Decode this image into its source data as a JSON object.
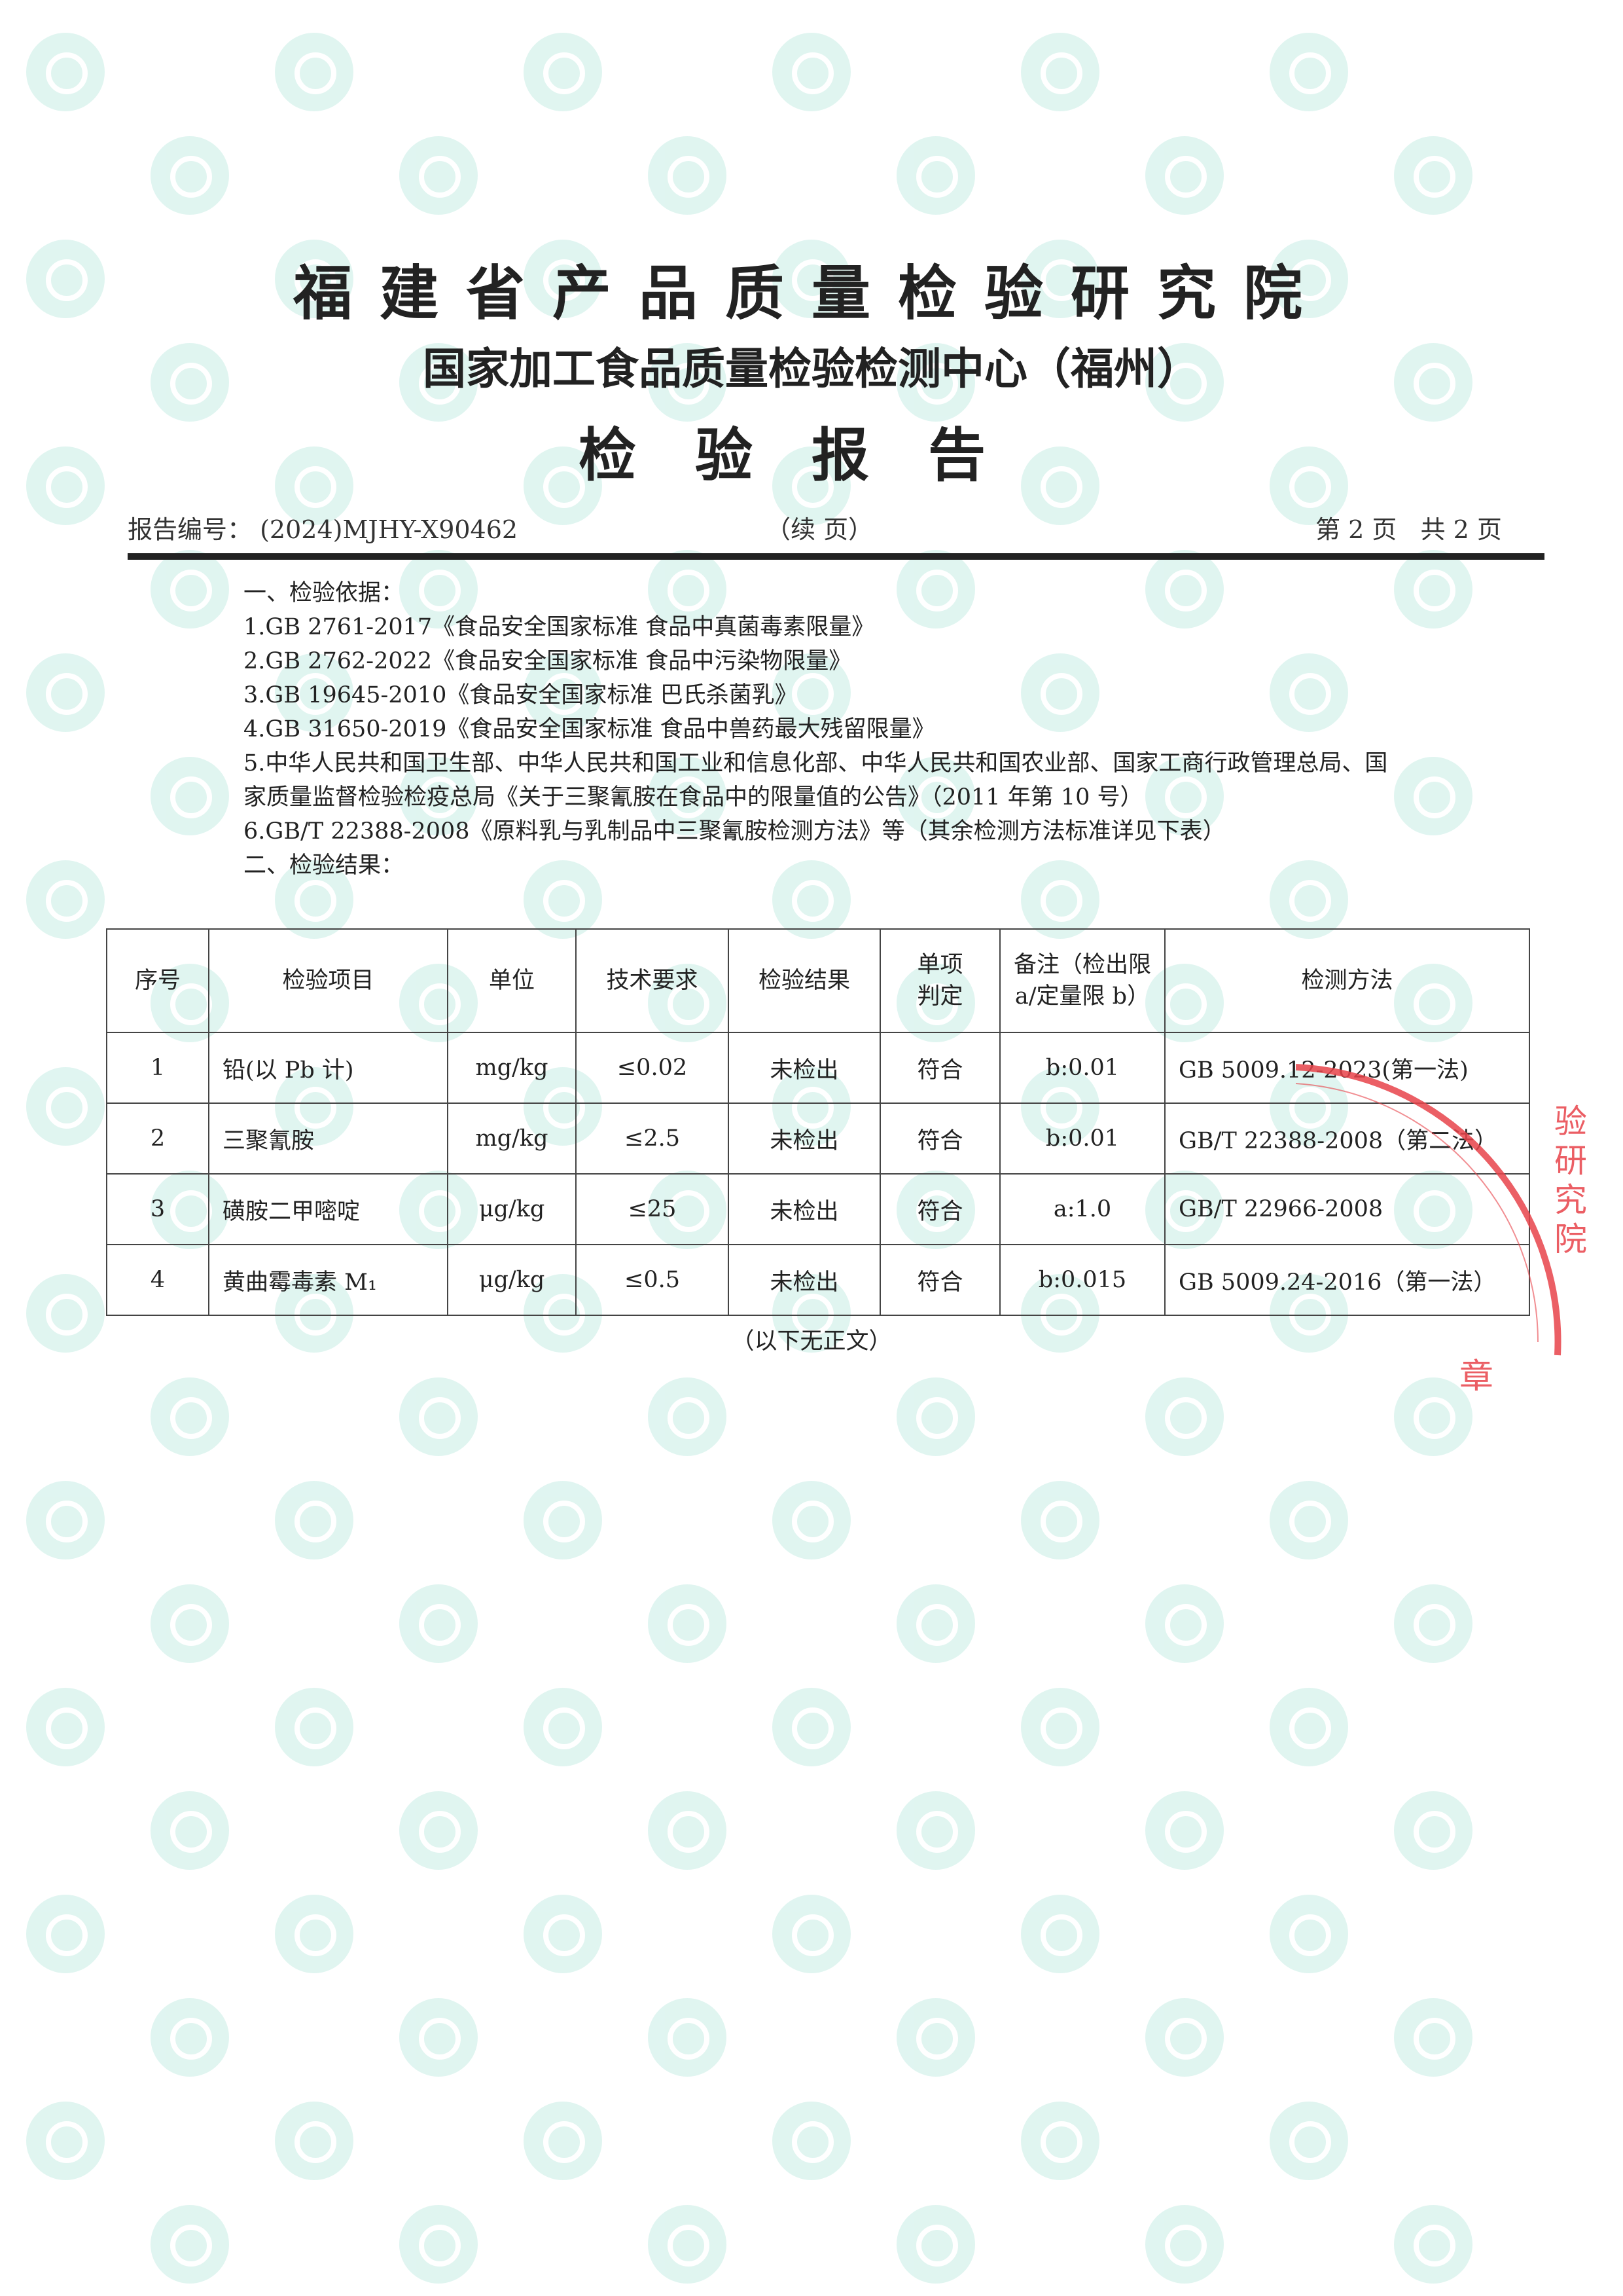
{
  "header": {
    "org_title": "福建省产品质量检验研究院",
    "org_subtitle": "国家加工食品质量检验检测中心（福州）",
    "doc_title": "检验报告",
    "report_no_label": "报告编号：",
    "report_no": "(2024)MJHY-X90462",
    "continued": "（续 页）",
    "page_info": "第 2 页   共 2 页"
  },
  "basis": {
    "heading": "一、检验依据：",
    "items": [
      "1.GB 2761-2017《食品安全国家标准  食品中真菌毒素限量》",
      "2.GB 2762-2022《食品安全国家标准  食品中污染物限量》",
      "3.GB 19645-2010《食品安全国家标准  巴氏杀菌乳》",
      "4.GB 31650-2019《食品安全国家标准  食品中兽药最大残留限量》",
      "5.中华人民共和国卫生部、中华人民共和国工业和信息化部、中华人民共和国农业部、国家工商行政管理总局、国家质量监督检验检疫总局《关于三聚氰胺在食品中的限量值的公告》（2011 年第 10 号）",
      "6.GB/T 22388-2008《原料乳与乳制品中三聚氰胺检测方法》等（其余检测方法标准详见下表）"
    ]
  },
  "results": {
    "heading": "二、检验结果：",
    "columns": [
      "序号",
      "检验项目",
      "单位",
      "技术要求",
      "检验结果",
      "单项判定",
      "备注（检出限 a/定量限 b）",
      "检测方法"
    ],
    "rows": [
      [
        "1",
        "铅(以 Pb 计)",
        "mg/kg",
        "≤0.02",
        "未检出",
        "符合",
        "b:0.01",
        "GB 5009.12-2023(第一法)"
      ],
      [
        "2",
        "三聚氰胺",
        "mg/kg",
        "≤2.5",
        "未检出",
        "符合",
        "b:0.01",
        "GB/T 22388-2008（第二法）"
      ],
      [
        "3",
        "磺胺二甲嘧啶",
        "μg/kg",
        "≤25",
        "未检出",
        "符合",
        "a:1.0",
        "GB/T 22966-2008"
      ],
      [
        "4",
        "黄曲霉毒素 M₁",
        "μg/kg",
        "≤0.5",
        "未检出",
        "符合",
        "b:0.015",
        "GB 5009.24-2016（第一法）"
      ]
    ]
  },
  "footer_note": "（以下无正文）",
  "stamp_text": "福建省产品质量检验研究院 检验专用章",
  "colors": {
    "watermark": "#d6f2ec",
    "stamp": "#e8434a",
    "text": "#222222"
  }
}
